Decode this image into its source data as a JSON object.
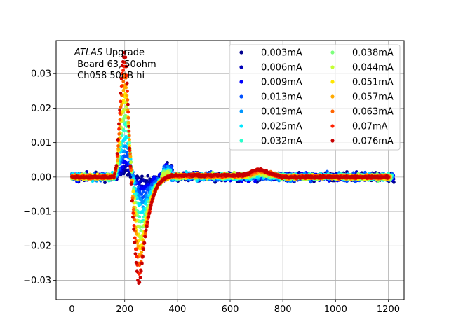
{
  "chart_data": {
    "type": "scatter",
    "title": "",
    "xlabel": "",
    "ylabel": "",
    "xlim": [
      -60,
      1260
    ],
    "ylim": [
      -0.0356,
      0.0396
    ],
    "xticks": [
      0,
      200,
      400,
      600,
      800,
      1000,
      1200
    ],
    "yticks": [
      -0.03,
      -0.02,
      -0.01,
      0.0,
      0.01,
      0.02,
      0.03
    ],
    "xtick_labels": [
      "0",
      "200",
      "400",
      "600",
      "800",
      "1000",
      "1200"
    ],
    "ytick_labels": [
      "−0.03",
      "−0.02",
      "−0.01",
      "0.00",
      "0.01",
      "0.02",
      "0.03"
    ],
    "grid": true,
    "legend_position": "top-right",
    "legend_columns": 2,
    "annotation": {
      "line1_italic": "ATLAS",
      "line1_rest": " Upgrade",
      "line2": " Board 63, 50ohm",
      "line3": " Ch058 50dB hi"
    },
    "series": [
      {
        "name": "0.003mA",
        "color": "#00008f",
        "amplitude": 0.003
      },
      {
        "name": "0.006mA",
        "color": "#0000b9",
        "amplitude": 0.006
      },
      {
        "name": "0.009mA",
        "color": "#0000ff",
        "amplitude": 0.009
      },
      {
        "name": "0.013mA",
        "color": "#0050ff",
        "amplitude": 0.013
      },
      {
        "name": "0.019mA",
        "color": "#0096ff",
        "amplitude": 0.019
      },
      {
        "name": "0.025mA",
        "color": "#00e6ff",
        "amplitude": 0.025
      },
      {
        "name": "0.032mA",
        "color": "#28ffcc",
        "amplitude": 0.032
      },
      {
        "name": "0.038mA",
        "color": "#7dff7d",
        "amplitude": 0.038
      },
      {
        "name": "0.044mA",
        "color": "#c4ff33",
        "amplitude": 0.044
      },
      {
        "name": "0.051mA",
        "color": "#ffe600",
        "amplitude": 0.051
      },
      {
        "name": "0.057mA",
        "color": "#ffaa00",
        "amplitude": 0.057
      },
      {
        "name": "0.063mA",
        "color": "#ff6400",
        "amplitude": 0.063
      },
      {
        "name": "0.07mA",
        "color": "#ff2000",
        "amplitude": 0.07
      },
      {
        "name": "0.076mA",
        "color": "#c80000",
        "amplitude": 0.076
      }
    ],
    "pulse_shape": {
      "x": [
        0,
        160,
        170,
        180,
        190,
        200,
        205,
        210,
        220,
        230,
        240,
        250,
        255,
        260,
        270,
        280,
        300,
        320,
        340,
        360,
        380,
        400,
        650,
        680,
        700,
        720,
        760,
        800,
        1200
      ],
      "y_at_max": [
        0,
        0,
        0.004,
        0.018,
        0.032,
        0.036,
        0.034,
        0.026,
        0.006,
        -0.01,
        -0.022,
        -0.03,
        -0.031,
        -0.029,
        -0.022,
        -0.016,
        -0.008,
        -0.003,
        -0.001,
        0.0,
        0.0005,
        0.0005,
        0.0005,
        0.0015,
        0.0022,
        0.002,
        0.0008,
        0.0,
        0.0
      ]
    },
    "noise_amplitude": 0.0012
  }
}
